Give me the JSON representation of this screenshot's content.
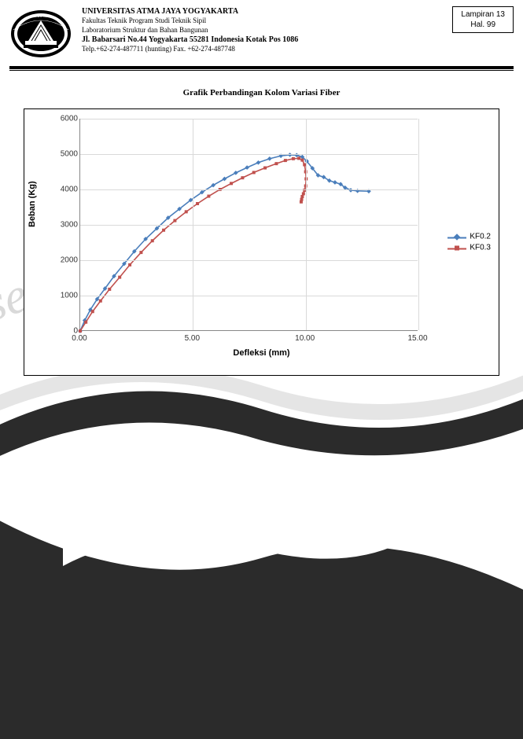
{
  "lampiran": {
    "line1": "Lampiran 13",
    "line2": "Hal. 99"
  },
  "header": {
    "line1": "UNIVERSITAS ATMA JAYA YOGYAKARTA",
    "line2": "Fakultas Teknik Program Studi Teknik Sipil",
    "line3": "Laboratorium Struktur dan Bahan Bangunan",
    "line4": "Jl. Babarsari No.44 Yogyakarta 55281 Indonesia Kotak Pos 1086",
    "line5": "Telp.+62-274-487711 (hunting) Fax. +62-274-487748"
  },
  "watermark_text": "ser",
  "caption": "Grafik Perbandingan Kolom Variasi Fiber",
  "chart": {
    "type": "line",
    "xlabel": "Defleksi (mm)",
    "ylabel": "Beban (Kg)",
    "xlim": [
      0,
      15
    ],
    "ylim": [
      0,
      6000
    ],
    "xtick_step": 5,
    "ytick_step": 1000,
    "xtick_labels": [
      "0.00",
      "5.00",
      "10.00",
      "15.00"
    ],
    "ytick_labels": [
      "0",
      "1000",
      "2000",
      "3000",
      "4000",
      "5000",
      "6000"
    ],
    "background_color": "#ffffff",
    "grid_color": "#d9d9d9",
    "axis_color": "#888888",
    "legend_position": "right",
    "series": [
      {
        "name": "KF0.2",
        "color": "#4a7ebb",
        "marker": "diamond",
        "x": [
          0.0,
          0.2,
          0.45,
          0.75,
          1.1,
          1.5,
          1.95,
          2.4,
          2.9,
          3.4,
          3.9,
          4.4,
          4.9,
          5.4,
          5.9,
          6.4,
          6.9,
          7.4,
          7.9,
          8.4,
          8.9,
          9.3,
          9.6,
          9.85,
          10.05,
          10.3,
          10.55,
          10.8,
          11.05,
          11.3,
          11.55,
          11.75,
          12.0,
          12.3,
          12.8
        ],
        "y": [
          0,
          300,
          600,
          900,
          1200,
          1550,
          1900,
          2250,
          2600,
          2900,
          3200,
          3450,
          3700,
          3920,
          4120,
          4300,
          4470,
          4620,
          4760,
          4870,
          4950,
          4980,
          4970,
          4920,
          4800,
          4600,
          4400,
          4350,
          4250,
          4200,
          4150,
          4050,
          3980,
          3960,
          3950
        ]
      },
      {
        "name": "KF0.3",
        "color": "#c0504d",
        "marker": "square",
        "x": [
          0.0,
          0.25,
          0.55,
          0.9,
          1.3,
          1.75,
          2.2,
          2.7,
          3.2,
          3.7,
          4.2,
          4.7,
          5.2,
          5.7,
          6.2,
          6.7,
          7.2,
          7.7,
          8.2,
          8.7,
          9.1,
          9.45,
          9.7,
          9.85,
          9.95,
          10.0,
          10.02,
          10.0,
          9.95,
          9.9,
          9.85,
          9.82,
          9.8
        ],
        "y": [
          0,
          250,
          550,
          850,
          1180,
          1520,
          1870,
          2220,
          2550,
          2850,
          3120,
          3370,
          3600,
          3810,
          4000,
          4170,
          4330,
          4480,
          4610,
          4730,
          4820,
          4870,
          4880,
          4830,
          4700,
          4500,
          4300,
          4100,
          3980,
          3880,
          3800,
          3720,
          3650
        ]
      }
    ]
  }
}
